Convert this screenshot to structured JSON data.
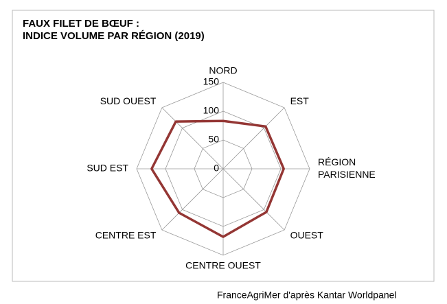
{
  "chart_data": {
    "type": "radar",
    "title": "FAUX FILET DE BŒUF :\nINDICE VOLUME PAR RÉGION (2019)",
    "categories": [
      "NORD",
      "EST",
      "RÉGION\nPARISIENNE",
      "OUEST",
      "CENTRE OUEST",
      "CENTRE EST",
      "SUD EST",
      "SUD OUEST"
    ],
    "series": [
      {
        "name": "Indice volume",
        "color": "#943634",
        "values": [
          83,
          104,
          105,
          106,
          118,
          108,
          124,
          116
        ]
      }
    ],
    "ylim": [
      0,
      150
    ],
    "yticks": [
      0,
      50,
      100,
      150
    ],
    "grid": true,
    "source": "FranceAgriMer d'après Kantar Worldpanel"
  }
}
